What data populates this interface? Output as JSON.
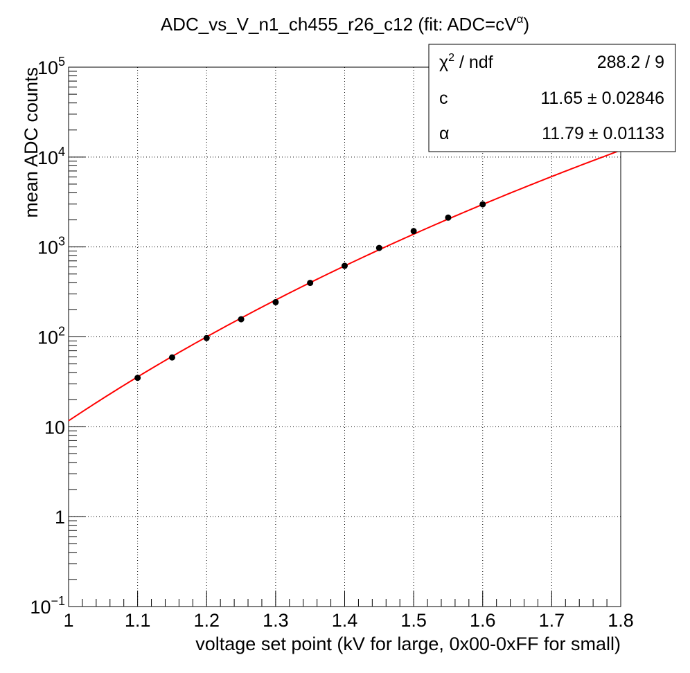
{
  "chart_data": {
    "type": "scatter",
    "title": "ADC_vs_V_n1_ch455_r26_c12 (fit: ADC=cV",
    "title_superscript": "α",
    "title_suffix": ")",
    "xlabel": "voltage set point (kV for large, 0x00-0xFF for small)",
    "ylabel": "mean ADC counts",
    "xlim": [
      1.0,
      1.8
    ],
    "ylim": [
      0.1,
      100000
    ],
    "yscale": "log",
    "grid": true,
    "x_ticks": [
      {
        "value": 1.0,
        "label": "1"
      },
      {
        "value": 1.1,
        "label": "1.1"
      },
      {
        "value": 1.2,
        "label": "1.2"
      },
      {
        "value": 1.3,
        "label": "1.3"
      },
      {
        "value": 1.4,
        "label": "1.4"
      },
      {
        "value": 1.5,
        "label": "1.5"
      },
      {
        "value": 1.6,
        "label": "1.6"
      },
      {
        "value": 1.7,
        "label": "1.7"
      },
      {
        "value": 1.8,
        "label": "1.8"
      }
    ],
    "y_ticks": [
      {
        "value": 0.1,
        "base": "10",
        "exp": "−1"
      },
      {
        "value": 1,
        "base": "1",
        "exp": ""
      },
      {
        "value": 10,
        "base": "10",
        "exp": ""
      },
      {
        "value": 100,
        "base": "10",
        "exp": "2"
      },
      {
        "value": 1000,
        "base": "10",
        "exp": "3"
      },
      {
        "value": 10000,
        "base": "10",
        "exp": "4"
      },
      {
        "value": 100000,
        "base": "10",
        "exp": "5"
      }
    ],
    "points": {
      "x": [
        1.1,
        1.15,
        1.2,
        1.25,
        1.3,
        1.35,
        1.4,
        1.45,
        1.5,
        1.55,
        1.6
      ],
      "y": [
        35,
        59,
        97,
        157,
        243,
        398,
        617,
        975,
        1500,
        2120,
        2980
      ],
      "color": "#000000"
    },
    "fit": {
      "model": "ADC = c*V^alpha",
      "c": 11.65,
      "alpha": 11.79,
      "color": "#ff0000"
    },
    "stats_box": {
      "rows": [
        {
          "name_main": "χ",
          "name_sup": "2",
          "name_rest": " / ndf",
          "value": "288.2 / 9"
        },
        {
          "name_main": "c",
          "name_sup": "",
          "name_rest": "",
          "value": "11.65 ± 0.02846"
        },
        {
          "name_main": "α",
          "name_sup": "",
          "name_rest": "",
          "value": "11.79 ± 0.01133"
        }
      ]
    }
  }
}
